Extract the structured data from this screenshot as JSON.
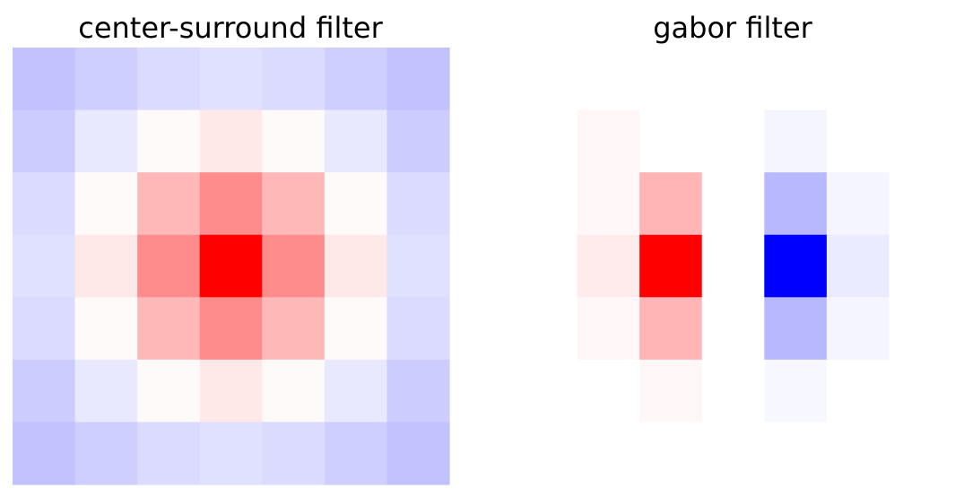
{
  "chart_data": [
    {
      "type": "heatmap",
      "title": "center-surround filter",
      "colormap": "bwr",
      "vmin": -1,
      "vmax": 1,
      "axes": "off",
      "values": [
        [
          -0.24,
          -0.19,
          -0.14,
          -0.12,
          -0.14,
          -0.19,
          -0.24
        ],
        [
          -0.2,
          -0.09,
          0.02,
          0.09,
          0.02,
          -0.09,
          -0.2
        ],
        [
          -0.14,
          0.02,
          0.28,
          0.45,
          0.28,
          0.02,
          -0.14
        ],
        [
          -0.12,
          0.09,
          0.45,
          1.0,
          0.45,
          0.09,
          -0.12
        ],
        [
          -0.14,
          0.02,
          0.28,
          0.45,
          0.28,
          0.02,
          -0.14
        ],
        [
          -0.2,
          -0.09,
          0.02,
          0.09,
          0.02,
          -0.09,
          -0.2
        ],
        [
          -0.24,
          -0.19,
          -0.14,
          -0.12,
          -0.14,
          -0.19,
          -0.24
        ]
      ]
    },
    {
      "type": "heatmap",
      "title": "gabor filter",
      "colormap": "bwr",
      "vmin": -1,
      "vmax": 1,
      "axes": "off",
      "values": [
        [
          0.0,
          0.0,
          0.0,
          0.0,
          0.0,
          0.0,
          0.0
        ],
        [
          0.0,
          0.03,
          0.0,
          0.0,
          -0.04,
          0.0,
          0.0
        ],
        [
          0.0,
          0.03,
          0.29,
          0.0,
          -0.28,
          -0.04,
          0.0
        ],
        [
          0.0,
          0.08,
          1.0,
          0.0,
          -1.0,
          -0.08,
          0.0
        ],
        [
          0.0,
          0.03,
          0.29,
          0.0,
          -0.28,
          -0.04,
          0.0
        ],
        [
          0.0,
          0.0,
          0.03,
          0.0,
          -0.03,
          0.0,
          0.0
        ],
        [
          0.0,
          0.0,
          0.0,
          0.0,
          0.0,
          0.0,
          0.0
        ]
      ]
    }
  ]
}
